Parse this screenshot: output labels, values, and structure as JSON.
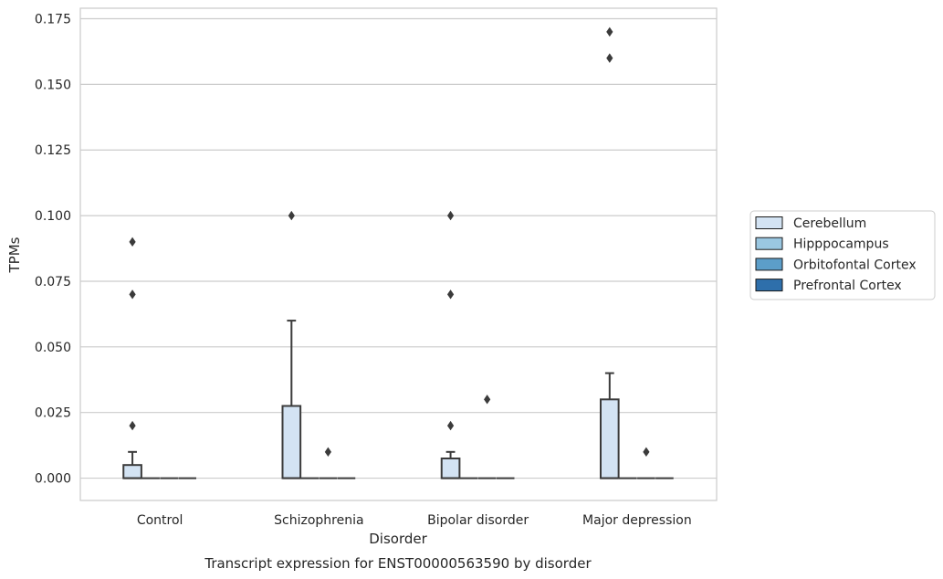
{
  "chart_data": {
    "type": "box",
    "title": "",
    "caption": "Transcript expression for ENST00000563590 by disorder",
    "xlabel": "Disorder",
    "ylabel": "TPMs",
    "ylim": [
      -0.0085,
      0.179
    ],
    "yticks": [
      "0.000",
      "0.025",
      "0.050",
      "0.075",
      "0.100",
      "0.125",
      "0.150",
      "0.175"
    ],
    "ytick_values": [
      0,
      0.025,
      0.05,
      0.075,
      0.1,
      0.125,
      0.15,
      0.175
    ],
    "grid": "horizontal",
    "legend_position": "right",
    "categories": [
      "Control",
      "Schizophrenia",
      "Bipolar disorder",
      "Major depression"
    ],
    "hue": [
      {
        "name": "Cerebellum",
        "color": "#d3e3f3"
      },
      {
        "name": "Hipppocampus",
        "color": "#9ac7e1"
      },
      {
        "name": "Orbitofontal Cortex",
        "color": "#5c9ec9"
      },
      {
        "name": "Prefrontal Cortex",
        "color": "#2e6fab"
      }
    ],
    "boxes": [
      {
        "category": "Control",
        "tissue": "Cerebellum",
        "q1": 0,
        "median": 0,
        "q3": 0.005,
        "whisker_low": 0,
        "whisker_high": 0.01,
        "outliers": [
          0.02,
          0.07,
          0.09
        ]
      },
      {
        "category": "Control",
        "tissue": "Hipppocampus",
        "q1": 0,
        "median": 0,
        "q3": 0,
        "whisker_low": 0,
        "whisker_high": 0,
        "outliers": []
      },
      {
        "category": "Control",
        "tissue": "Orbitofontal Cortex",
        "q1": 0,
        "median": 0,
        "q3": 0,
        "whisker_low": 0,
        "whisker_high": 0,
        "outliers": []
      },
      {
        "category": "Control",
        "tissue": "Prefrontal Cortex",
        "q1": 0,
        "median": 0,
        "q3": 0,
        "whisker_low": 0,
        "whisker_high": 0,
        "outliers": []
      },
      {
        "category": "Schizophrenia",
        "tissue": "Cerebellum",
        "q1": 0,
        "median": 0,
        "q3": 0.0275,
        "whisker_low": 0,
        "whisker_high": 0.06,
        "outliers": [
          0.1
        ]
      },
      {
        "category": "Schizophrenia",
        "tissue": "Hipppocampus",
        "q1": 0,
        "median": 0,
        "q3": 0,
        "whisker_low": 0,
        "whisker_high": 0,
        "outliers": []
      },
      {
        "category": "Schizophrenia",
        "tissue": "Orbitofontal Cortex",
        "q1": 0,
        "median": 0,
        "q3": 0,
        "whisker_low": 0,
        "whisker_high": 0,
        "outliers": [
          0.01
        ]
      },
      {
        "category": "Schizophrenia",
        "tissue": "Prefrontal Cortex",
        "q1": 0,
        "median": 0,
        "q3": 0,
        "whisker_low": 0,
        "whisker_high": 0,
        "outliers": []
      },
      {
        "category": "Bipolar disorder",
        "tissue": "Cerebellum",
        "q1": 0,
        "median": 0,
        "q3": 0.0075,
        "whisker_low": 0,
        "whisker_high": 0.01,
        "outliers": [
          0.02,
          0.07,
          0.1
        ]
      },
      {
        "category": "Bipolar disorder",
        "tissue": "Hipppocampus",
        "q1": 0,
        "median": 0,
        "q3": 0,
        "whisker_low": 0,
        "whisker_high": 0,
        "outliers": []
      },
      {
        "category": "Bipolar disorder",
        "tissue": "Orbitofontal Cortex",
        "q1": 0,
        "median": 0,
        "q3": 0,
        "whisker_low": 0,
        "whisker_high": 0,
        "outliers": [
          0.03
        ]
      },
      {
        "category": "Bipolar disorder",
        "tissue": "Prefrontal Cortex",
        "q1": 0,
        "median": 0,
        "q3": 0,
        "whisker_low": 0,
        "whisker_high": 0,
        "outliers": []
      },
      {
        "category": "Major depression",
        "tissue": "Cerebellum",
        "q1": 0,
        "median": 0,
        "q3": 0.03,
        "whisker_low": 0,
        "whisker_high": 0.04,
        "outliers": [
          0.16,
          0.17
        ]
      },
      {
        "category": "Major depression",
        "tissue": "Hipppocampus",
        "q1": 0,
        "median": 0,
        "q3": 0,
        "whisker_low": 0,
        "whisker_high": 0,
        "outliers": []
      },
      {
        "category": "Major depression",
        "tissue": "Orbitofontal Cortex",
        "q1": 0,
        "median": 0,
        "q3": 0,
        "whisker_low": 0,
        "whisker_high": 0,
        "outliers": [
          0.01
        ]
      },
      {
        "category": "Major depression",
        "tissue": "Prefrontal Cortex",
        "q1": 0,
        "median": 0,
        "q3": 0,
        "whisker_low": 0,
        "whisker_high": 0,
        "outliers": []
      }
    ]
  }
}
